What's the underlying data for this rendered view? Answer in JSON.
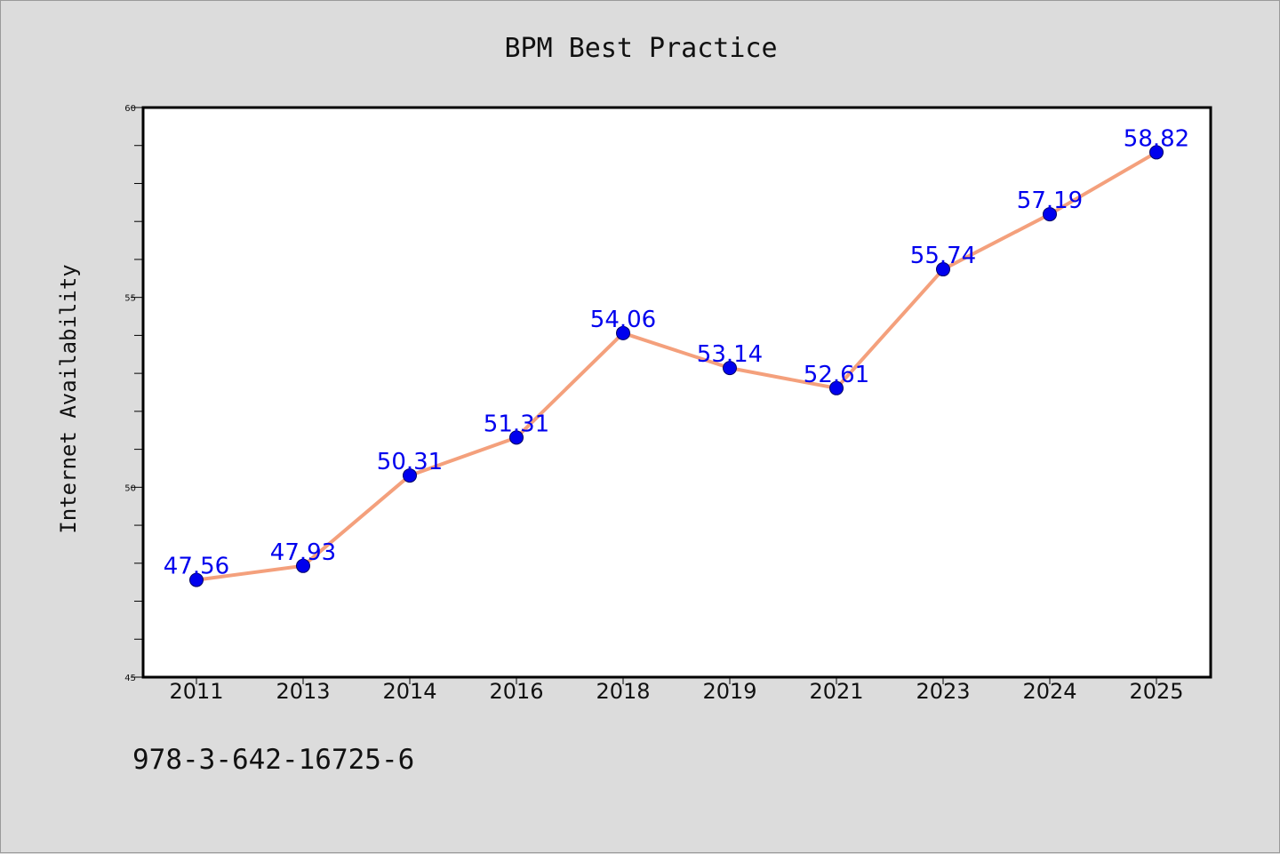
{
  "chart_data": {
    "type": "line",
    "title": "BPM Best Practice",
    "xlabel": "",
    "ylabel": "Internet Availability",
    "categories": [
      "2011",
      "2013",
      "2014",
      "2016",
      "2018",
      "2019",
      "2021",
      "2023",
      "2024",
      "2025"
    ],
    "series": [
      {
        "values": [
          47.56,
          47.93,
          50.31,
          51.31,
          54.06,
          53.14,
          52.61,
          55.74,
          57.19,
          58.82
        ],
        "data_labels": [
          "47.56",
          "47.93",
          "50.31",
          "51.31",
          "54.06",
          "53.14",
          "52.61",
          "55.74",
          "57.19",
          "58.82"
        ],
        "line_color": "#f4a07c",
        "marker_color": "#0000ee",
        "label_color": "#0000ee"
      }
    ],
    "ylim": [
      45,
      60
    ],
    "yticks": [
      "45",
      "50",
      "55",
      "60"
    ],
    "grid": false,
    "legend": "none"
  },
  "footnote": "978-3-642-16725-6",
  "colors": {
    "background": "#dcdcdc",
    "plot_area": "#ffffff",
    "axes": "#000000"
  }
}
